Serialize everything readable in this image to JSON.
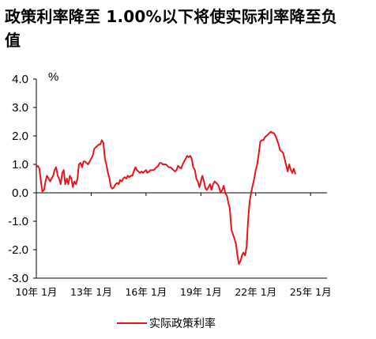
{
  "chart_data": {
    "type": "line",
    "title": "政策利率降至 1.00%以下将使实际利率降至负值",
    "unit_label": "%",
    "ylim": [
      -3.0,
      4.0
    ],
    "y_ticks": [
      "4.0",
      "3.0",
      "2.0",
      "1.0",
      "0.0",
      "-1.0",
      "-2.0",
      "-3.0"
    ],
    "y_tick_values": [
      4,
      3,
      2,
      1,
      0,
      -1,
      -2,
      -3
    ],
    "x_tick_labels": [
      "10年 1月",
      "13年 1月",
      "16年 1月",
      "19年 1月",
      "22年 1月",
      "25年 1月"
    ],
    "x_tick_values": [
      2010,
      2013,
      2016,
      2019,
      2022,
      2025
    ],
    "xlim": [
      2010,
      2025.9
    ],
    "legend_position": "bottom",
    "colors": {
      "series": "#e8141c",
      "axis": "#000000"
    },
    "series": [
      {
        "name": "实际政策利率",
        "points": [
          [
            2010.0,
            0.9
          ],
          [
            2010.08,
            0.95
          ],
          [
            2010.17,
            0.85
          ],
          [
            2010.25,
            0.4
          ],
          [
            2010.33,
            0.05
          ],
          [
            2010.42,
            0.1
          ],
          [
            2010.5,
            0.4
          ],
          [
            2010.58,
            0.6
          ],
          [
            2010.67,
            0.5
          ],
          [
            2010.75,
            0.4
          ],
          [
            2010.83,
            0.5
          ],
          [
            2010.92,
            0.6
          ],
          [
            2011.0,
            0.8
          ],
          [
            2011.08,
            0.9
          ],
          [
            2011.17,
            0.6
          ],
          [
            2011.25,
            0.5
          ],
          [
            2011.33,
            0.3
          ],
          [
            2011.42,
            0.7
          ],
          [
            2011.5,
            0.8
          ],
          [
            2011.58,
            0.3
          ],
          [
            2011.67,
            0.5
          ],
          [
            2011.75,
            0.3
          ],
          [
            2011.83,
            0.6
          ],
          [
            2011.92,
            0.5
          ],
          [
            2012.0,
            0.2
          ],
          [
            2012.08,
            0.4
          ],
          [
            2012.17,
            0.3
          ],
          [
            2012.25,
            0.5
          ],
          [
            2012.33,
            1.0
          ],
          [
            2012.42,
            1.05
          ],
          [
            2012.5,
            0.9
          ],
          [
            2012.58,
            1.1
          ],
          [
            2012.67,
            1.1
          ],
          [
            2012.75,
            1.05
          ],
          [
            2012.83,
            1.0
          ],
          [
            2012.92,
            1.1
          ],
          [
            2013.0,
            1.2
          ],
          [
            2013.08,
            1.3
          ],
          [
            2013.17,
            1.55
          ],
          [
            2013.25,
            1.6
          ],
          [
            2013.33,
            1.65
          ],
          [
            2013.42,
            1.7
          ],
          [
            2013.5,
            1.7
          ],
          [
            2013.58,
            1.85
          ],
          [
            2013.67,
            1.75
          ],
          [
            2013.75,
            1.2
          ],
          [
            2013.83,
            1.0
          ],
          [
            2013.92,
            0.7
          ],
          [
            2014.0,
            0.5
          ],
          [
            2014.08,
            0.2
          ],
          [
            2014.17,
            0.15
          ],
          [
            2014.25,
            0.2
          ],
          [
            2014.33,
            0.3
          ],
          [
            2014.42,
            0.35
          ],
          [
            2014.5,
            0.3
          ],
          [
            2014.58,
            0.45
          ],
          [
            2014.67,
            0.4
          ],
          [
            2014.75,
            0.5
          ],
          [
            2014.83,
            0.55
          ],
          [
            2014.92,
            0.5
          ],
          [
            2015.0,
            0.6
          ],
          [
            2015.08,
            0.55
          ],
          [
            2015.17,
            0.6
          ],
          [
            2015.25,
            0.6
          ],
          [
            2015.33,
            0.75
          ],
          [
            2015.42,
            0.9
          ],
          [
            2015.5,
            0.8
          ],
          [
            2015.58,
            0.75
          ],
          [
            2015.67,
            0.7
          ],
          [
            2015.75,
            0.75
          ],
          [
            2015.83,
            0.7
          ],
          [
            2015.92,
            0.75
          ],
          [
            2016.0,
            0.8
          ],
          [
            2016.08,
            0.7
          ],
          [
            2016.17,
            0.75
          ],
          [
            2016.25,
            0.8
          ],
          [
            2016.33,
            0.8
          ],
          [
            2016.42,
            0.8
          ],
          [
            2016.5,
            0.85
          ],
          [
            2016.58,
            0.9
          ],
          [
            2016.67,
            0.95
          ],
          [
            2016.75,
            1.05
          ],
          [
            2016.83,
            1.05
          ],
          [
            2016.92,
            1.0
          ],
          [
            2017.0,
            1.0
          ],
          [
            2017.08,
            1.0
          ],
          [
            2017.17,
            0.95
          ],
          [
            2017.25,
            0.9
          ],
          [
            2017.33,
            0.9
          ],
          [
            2017.42,
            0.85
          ],
          [
            2017.5,
            0.8
          ],
          [
            2017.58,
            0.75
          ],
          [
            2017.67,
            0.8
          ],
          [
            2017.75,
            0.95
          ],
          [
            2017.83,
            0.9
          ],
          [
            2017.92,
            0.85
          ],
          [
            2018.0,
            1.0
          ],
          [
            2018.08,
            1.1
          ],
          [
            2018.17,
            1.2
          ],
          [
            2018.25,
            1.3
          ],
          [
            2018.33,
            1.25
          ],
          [
            2018.42,
            1.3
          ],
          [
            2018.5,
            1.2
          ],
          [
            2018.58,
            0.9
          ],
          [
            2018.67,
            0.8
          ],
          [
            2018.75,
            0.5
          ],
          [
            2018.83,
            0.4
          ],
          [
            2018.92,
            0.2
          ],
          [
            2019.0,
            0.4
          ],
          [
            2019.08,
            0.6
          ],
          [
            2019.17,
            0.4
          ],
          [
            2019.25,
            0.15
          ],
          [
            2019.33,
            0.1
          ],
          [
            2019.42,
            0.2
          ],
          [
            2019.5,
            0.3
          ],
          [
            2019.58,
            0.1
          ],
          [
            2019.67,
            0.3
          ],
          [
            2019.75,
            0.4
          ],
          [
            2019.83,
            0.35
          ],
          [
            2019.92,
            0.3
          ],
          [
            2020.0,
            0.2
          ],
          [
            2020.08,
            0.0
          ],
          [
            2020.17,
            0.1
          ],
          [
            2020.25,
            0.25
          ],
          [
            2020.33,
            0.0
          ],
          [
            2020.42,
            -0.1
          ],
          [
            2020.5,
            -0.35
          ],
          [
            2020.58,
            -0.55
          ],
          [
            2020.67,
            -1.3
          ],
          [
            2020.75,
            -1.45
          ],
          [
            2020.83,
            -1.6
          ],
          [
            2020.92,
            -1.8
          ],
          [
            2021.0,
            -2.2
          ],
          [
            2021.08,
            -2.5
          ],
          [
            2021.17,
            -2.4
          ],
          [
            2021.25,
            -2.2
          ],
          [
            2021.33,
            -2.1
          ],
          [
            2021.42,
            -2.2
          ],
          [
            2021.5,
            -1.9
          ],
          [
            2021.58,
            -1.0
          ],
          [
            2021.67,
            -0.3
          ],
          [
            2021.75,
            0.0
          ],
          [
            2021.83,
            0.25
          ],
          [
            2021.92,
            0.5
          ],
          [
            2022.0,
            0.8
          ],
          [
            2022.08,
            1.0
          ],
          [
            2022.17,
            1.4
          ],
          [
            2022.25,
            1.8
          ],
          [
            2022.33,
            1.85
          ],
          [
            2022.42,
            1.85
          ],
          [
            2022.5,
            1.95
          ],
          [
            2022.58,
            2.0
          ],
          [
            2022.67,
            2.05
          ],
          [
            2022.75,
            2.1
          ],
          [
            2022.83,
            2.15
          ],
          [
            2022.92,
            2.1
          ],
          [
            2023.0,
            2.1
          ],
          [
            2023.08,
            2.0
          ],
          [
            2023.17,
            1.85
          ],
          [
            2023.25,
            1.7
          ],
          [
            2023.33,
            1.5
          ],
          [
            2023.42,
            1.45
          ],
          [
            2023.5,
            1.4
          ],
          [
            2023.58,
            1.2
          ],
          [
            2023.67,
            0.95
          ],
          [
            2023.75,
            0.75
          ],
          [
            2023.83,
            1.0
          ],
          [
            2023.92,
            0.8
          ],
          [
            2024.0,
            0.7
          ],
          [
            2024.08,
            0.85
          ],
          [
            2024.17,
            0.65
          ]
        ]
      }
    ]
  }
}
